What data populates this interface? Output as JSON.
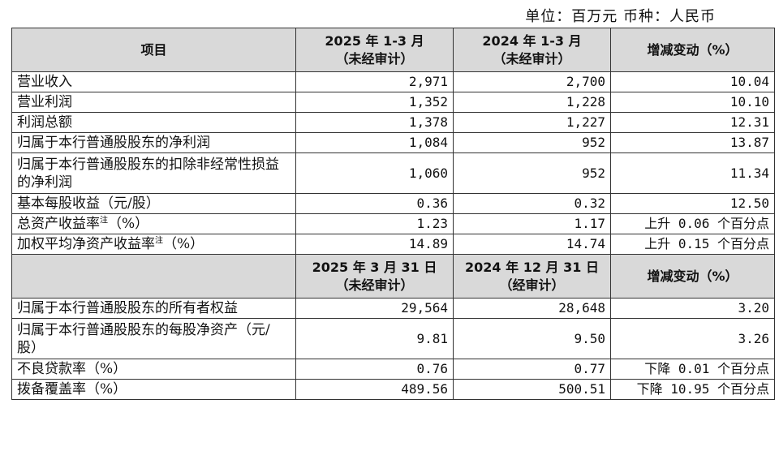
{
  "unit_note": "单位：百万元 币种：人民币",
  "section1": {
    "headers": {
      "item": "项目",
      "col2_line1": "2025 年 1-3 月",
      "col2_line2": "（未经审计）",
      "col3_line1": "2024 年 1-3 月",
      "col3_line2": "（未经审计）",
      "change": "增减变动（%）"
    },
    "rows": [
      {
        "label": "营业收入",
        "sup": "",
        "unit": "",
        "v2025": "2,971",
        "v2024": "2,700",
        "change": "10.04"
      },
      {
        "label": "营业利润",
        "sup": "",
        "unit": "",
        "v2025": "1,352",
        "v2024": "1,228",
        "change": "10.10"
      },
      {
        "label": "利润总额",
        "sup": "",
        "unit": "",
        "v2025": "1,378",
        "v2024": "1,227",
        "change": "12.31"
      },
      {
        "label": "归属于本行普通股股东的净利润",
        "sup": "",
        "unit": "",
        "v2025": "1,084",
        "v2024": "952",
        "change": "13.87"
      },
      {
        "label": "归属于本行普通股股东的扣除非经常性损益的净利润",
        "sup": "",
        "unit": "",
        "v2025": "1,060",
        "v2024": "952",
        "change": "11.34"
      },
      {
        "label": "基本每股收益（元/股）",
        "sup": "",
        "unit": "",
        "v2025": "0.36",
        "v2024": "0.32",
        "change": "12.50"
      },
      {
        "label": "总资产收益率",
        "sup": "注",
        "unit": "（%）",
        "v2025": "1.23",
        "v2024": "1.17",
        "change": "上升 0.06 个百分点"
      },
      {
        "label": "加权平均净资产收益率",
        "sup": "注",
        "unit": "（%）",
        "v2025": "14.89",
        "v2024": "14.74",
        "change": "上升 0.15 个百分点"
      }
    ]
  },
  "section2": {
    "headers": {
      "col2_line1": "2025 年 3 月 31 日",
      "col2_line2": "（未经审计）",
      "col3_line1": "2024 年 12 月 31 日",
      "col3_line2": "（经审计）",
      "change": "增减变动（%）"
    },
    "rows": [
      {
        "label": "归属于本行普通股股东的所有者权益",
        "v2025": "29,564",
        "v2024": "28,648",
        "change": "3.20"
      },
      {
        "label": "归属于本行普通股股东的每股净资产（元/股）",
        "v2025": "9.81",
        "v2024": "9.50",
        "change": "3.26"
      },
      {
        "label": "不良贷款率（%）",
        "v2025": "0.76",
        "v2024": "0.77",
        "change": "下降 0.01 个百分点"
      },
      {
        "label": "拨备覆盖率（%）",
        "v2025": "489.56",
        "v2024": "500.51",
        "change": "下降 10.95 个百分点"
      }
    ]
  }
}
